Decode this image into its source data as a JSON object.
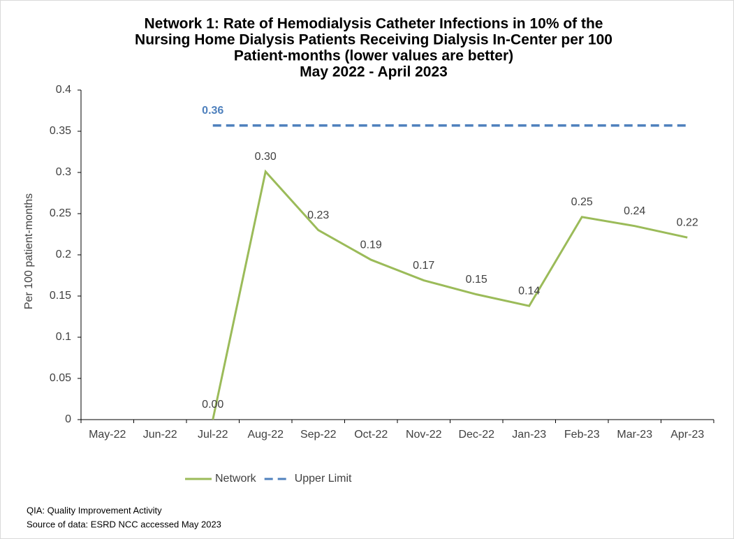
{
  "chart_data": {
    "type": "line",
    "title_lines": [
      "Network 1: Rate of Hemodialysis Catheter Infections in 10% of the",
      "Nursing Home Dialysis Patients Receiving Dialysis In-Center per 100",
      "Patient-months (lower values are better)",
      "May 2022 - April 2023"
    ],
    "y_label": "Per 100 patient-months",
    "categories": [
      "May-22",
      "Jun-22",
      "Jul-22",
      "Aug-22",
      "Sep-22",
      "Oct-22",
      "Nov-22",
      "Dec-22",
      "Jan-23",
      "Feb-23",
      "Mar-23",
      "Apr-23"
    ],
    "series": [
      {
        "name": "Network",
        "color": "#9bbb59",
        "dashed": false,
        "values": [
          null,
          null,
          0,
          0.301,
          0.23,
          0.194,
          0.169,
          0.152,
          0.138,
          0.246,
          0.235,
          0.221
        ],
        "value_labels": [
          null,
          null,
          "0.00",
          "0.30",
          "0.23",
          "0.19",
          "0.17",
          "0.15",
          "0.14",
          "0.25",
          "0.24",
          "0.22"
        ]
      },
      {
        "name": "Upper Limit",
        "color": "#4f81bd",
        "dashed": true,
        "values": [
          null,
          null,
          0.357,
          0.357,
          0.357,
          0.357,
          0.357,
          0.357,
          0.357,
          0.357,
          0.357,
          0.357
        ],
        "value_labels": [
          null,
          null,
          "0.36",
          null,
          null,
          null,
          null,
          null,
          null,
          null,
          null,
          null
        ]
      }
    ],
    "ylim": [
      0,
      0.4
    ],
    "yticks": [
      0,
      0.05,
      0.1,
      0.15,
      0.2,
      0.25,
      0.3,
      0.35,
      0.4
    ],
    "legend": "bottom",
    "footnotes": [
      "QIA:  Quality Improvement Activity",
      "Source of data:  ESRD NCC accessed May 2023"
    ]
  }
}
